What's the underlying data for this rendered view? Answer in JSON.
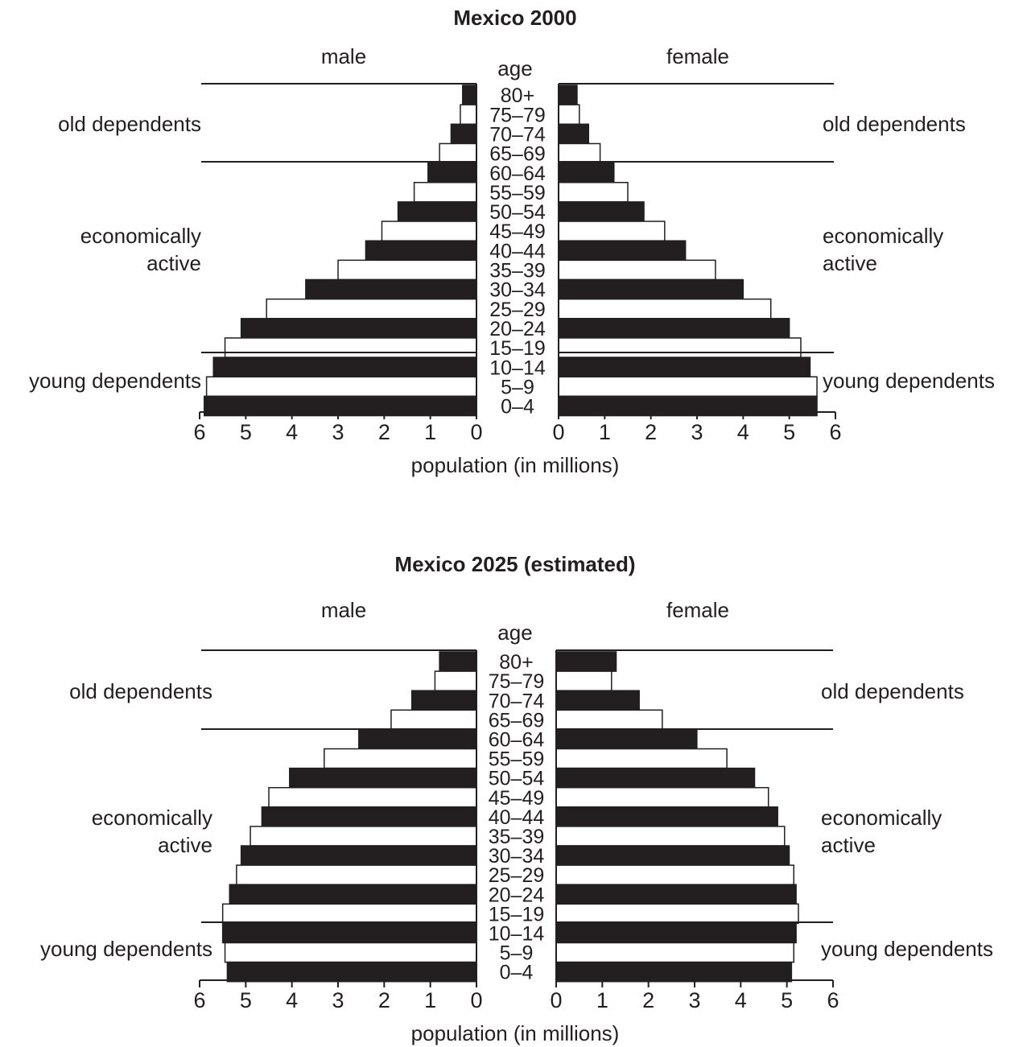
{
  "chart_data": [
    {
      "type": "bar",
      "title": "Mexico 2000",
      "left_label": "male",
      "right_label": "female",
      "age_label": "age",
      "xlabel": "population (in millions)",
      "categories": [
        "80+",
        "75–79",
        "70–74",
        "65–69",
        "60–64",
        "55–59",
        "50–54",
        "45–49",
        "40–44",
        "35–39",
        "30–34",
        "25–29",
        "20–24",
        "15–19",
        "10–14",
        "5–9",
        "0–4"
      ],
      "series": [
        {
          "name": "male",
          "values": [
            0.3,
            0.35,
            0.55,
            0.8,
            1.05,
            1.35,
            1.7,
            2.05,
            2.4,
            3.0,
            3.7,
            4.55,
            5.1,
            5.45,
            5.7,
            5.85,
            5.9
          ]
        },
        {
          "name": "female",
          "values": [
            0.4,
            0.45,
            0.65,
            0.9,
            1.2,
            1.5,
            1.85,
            2.3,
            2.75,
            3.4,
            4.0,
            4.6,
            5.0,
            5.25,
            5.45,
            5.6,
            5.6
          ]
        }
      ],
      "xlim": [
        0,
        6
      ],
      "ticks_left": [
        "6",
        "5",
        "4",
        "3",
        "2",
        "1",
        "0"
      ],
      "ticks_right": [
        "0",
        "1",
        "2",
        "3",
        "4",
        "5",
        "6"
      ],
      "group_labels": {
        "old": "old dependents",
        "active_line1": "economically",
        "active_line2": "active",
        "young": "young dependents"
      }
    },
    {
      "type": "bar",
      "title": "Mexico 2025 (estimated)",
      "left_label": "male",
      "right_label": "female",
      "age_label": "age",
      "xlabel": "population (in millions)",
      "categories": [
        "80+",
        "75–79",
        "70–74",
        "65–69",
        "60–64",
        "55–59",
        "50–54",
        "45–49",
        "40–44",
        "35–39",
        "30–34",
        "25–29",
        "20–24",
        "15–19",
        "10–14",
        "5–9",
        "0–4"
      ],
      "series": [
        {
          "name": "male",
          "values": [
            0.8,
            0.9,
            1.4,
            1.85,
            2.55,
            3.3,
            4.05,
            4.5,
            4.65,
            4.9,
            5.1,
            5.2,
            5.35,
            5.5,
            5.5,
            5.45,
            5.4
          ]
        },
        {
          "name": "female",
          "values": [
            1.3,
            1.2,
            1.8,
            2.3,
            3.05,
            3.7,
            4.3,
            4.6,
            4.8,
            4.95,
            5.05,
            5.15,
            5.2,
            5.25,
            5.2,
            5.15,
            5.1
          ]
        }
      ],
      "xlim": [
        0,
        6
      ],
      "ticks_left": [
        "6",
        "5",
        "4",
        "3",
        "2",
        "1",
        "0"
      ],
      "ticks_right": [
        "0",
        "1",
        "2",
        "3",
        "4",
        "5",
        "6"
      ],
      "group_labels": {
        "old": "old dependents",
        "active_line1": "economically",
        "active_line2": "active",
        "young": "young dependents"
      }
    }
  ]
}
